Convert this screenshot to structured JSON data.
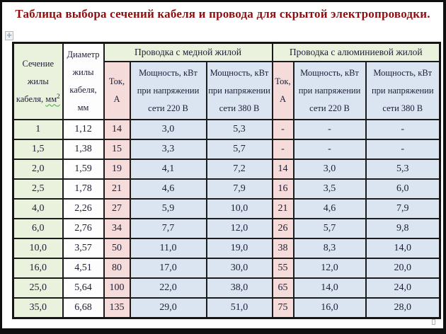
{
  "title": "Таблица выбора сечений кабеля и провода для скрытой электропроводки.",
  "icons": {
    "move_handle": "✛"
  },
  "colors": {
    "title_red": "#8e0e10",
    "cell_green": "#eaf1dc",
    "cell_white": "#fdfdfd",
    "cell_pink": "#f5dcda",
    "cell_blue": "#dbe5f1",
    "border_dark": "#1a1a1a",
    "squiggle_green": "#3fae3f"
  },
  "table": {
    "headers": {
      "section_main": "Сечение жилы кабеля,",
      "section_unit": "мм",
      "section_sup": "2",
      "diameter": "Диаметр жилы кабеля, мм",
      "copper_group": "Проводка с медной жилой",
      "aluminum_group": "Проводка с алюминиевой жилой",
      "current": "Ток, А",
      "power_220": "Мощность, кВт при напряжении сети 220 В",
      "power_380": "Мощность, кВт при напряжении сети 380 В"
    },
    "rows": [
      [
        "1",
        "1,12",
        "14",
        "3,0",
        "5,3",
        "-",
        "-",
        "-"
      ],
      [
        "1,5",
        "1,38",
        "15",
        "3,3",
        "5,7",
        "-",
        "-",
        "-"
      ],
      [
        "2,0",
        "1,59",
        "19",
        "4,1",
        "7,2",
        "14",
        "3,0",
        "5,3"
      ],
      [
        "2,5",
        "1,78",
        "21",
        "4,6",
        "7,9",
        "16",
        "3,5",
        "6,0"
      ],
      [
        "4,0",
        "2,26",
        "27",
        "5,9",
        "10,0",
        "21",
        "4,6",
        "7,9"
      ],
      [
        "6,0",
        "2,76",
        "34",
        "7,7",
        "12,0",
        "26",
        "5,7",
        "9,8"
      ],
      [
        "10,0",
        "3,57",
        "50",
        "11,0",
        "19,0",
        "38",
        "8,3",
        "14,0"
      ],
      [
        "16,0",
        "4,51",
        "80",
        "17,0",
        "30,0",
        "55",
        "12,0",
        "20,0"
      ],
      [
        "25,0",
        "5,64",
        "100",
        "22,0",
        "38,0",
        "65",
        "14,0",
        "24,0"
      ],
      [
        "35,0",
        "6,68",
        "135",
        "29,0",
        "51,0",
        "75",
        "16,0",
        "28,0"
      ]
    ]
  }
}
